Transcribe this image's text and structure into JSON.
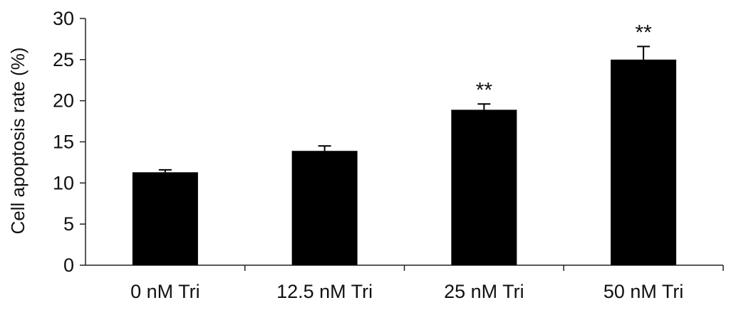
{
  "chart_data": {
    "type": "bar",
    "title": "",
    "xlabel": "",
    "ylabel": "Cell apoptosis rate (%)",
    "ylim": [
      0,
      30
    ],
    "yticks": [
      0,
      5,
      10,
      15,
      20,
      25,
      30
    ],
    "grid": false,
    "categories": [
      "0 nM Tri",
      "12.5 nM Tri",
      "25 nM Tri",
      "50 nM Tri"
    ],
    "values": [
      11.3,
      13.9,
      18.9,
      25.0
    ],
    "errors": [
      0.3,
      0.6,
      0.7,
      1.6
    ],
    "annotations": [
      "",
      "",
      "**",
      "**"
    ],
    "bar_color": "#000000"
  }
}
